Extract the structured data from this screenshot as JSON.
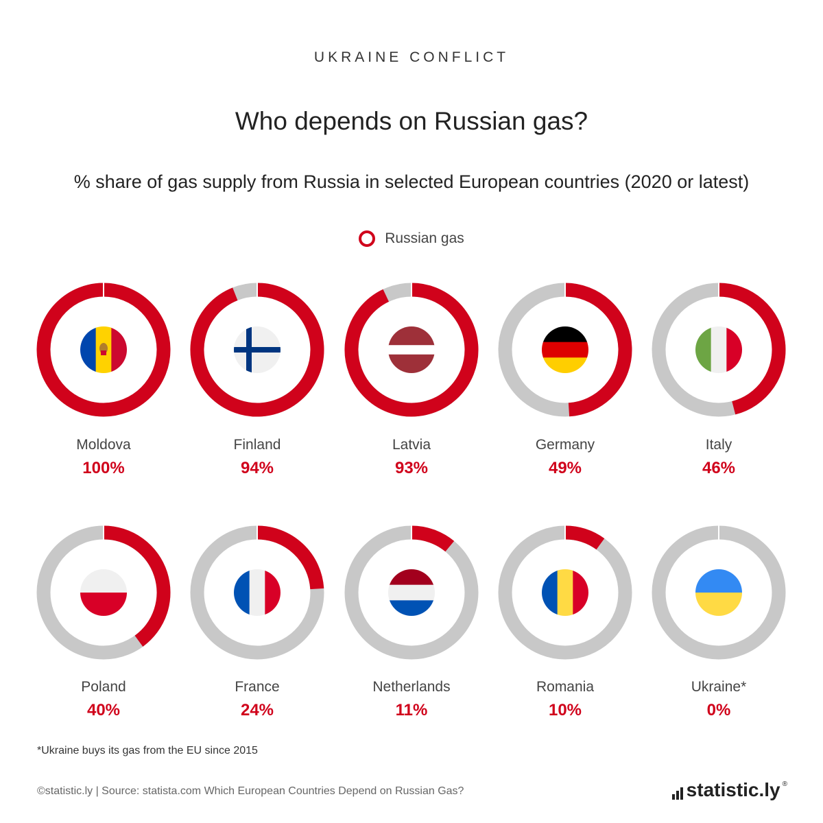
{
  "header": {
    "kicker": "UKRAINE CONFLICT",
    "title": "Who depends on Russian gas?",
    "subtitle": "% share of gas supply from Russia in selected European countries (2020 or latest)"
  },
  "legend": {
    "label": "Russian gas",
    "color": "#d0021b"
  },
  "colors": {
    "russian": "#d0021b",
    "rest": "#c8c8c8"
  },
  "chart_data": {
    "type": "pie",
    "variant": "donut-grid",
    "title": "Who depends on Russian gas?",
    "subtitle": "% share of gas supply from Russia in selected European countries (2020 or latest)",
    "series_name": "Russian gas",
    "categories": [
      "Moldova",
      "Finland",
      "Latvia",
      "Germany",
      "Italy",
      "Poland",
      "France",
      "Netherlands",
      "Romania",
      "Ukraine*"
    ],
    "values": [
      100,
      94,
      93,
      49,
      46,
      40,
      24,
      11,
      10,
      0
    ],
    "value_labels": [
      "100%",
      "94%",
      "93%",
      "49%",
      "46%",
      "40%",
      "24%",
      "11%",
      "10%",
      "0%"
    ],
    "flags": [
      {
        "icon": "moldova-flag-icon",
        "type": "v",
        "colors": [
          "#0046ae",
          "#ffd200",
          "#cc092f"
        ],
        "emblem": true
      },
      {
        "icon": "finland-flag-icon",
        "type": "nordic",
        "colors": [
          "#f0f0f0",
          "#003580"
        ]
      },
      {
        "icon": "latvia-flag-icon",
        "type": "h",
        "colors": [
          "#9e3039",
          "#ffffff",
          "#9e3039"
        ],
        "weights": [
          2,
          1,
          2
        ]
      },
      {
        "icon": "germany-flag-icon",
        "type": "h",
        "colors": [
          "#000000",
          "#dd0000",
          "#ffce00"
        ]
      },
      {
        "icon": "italy-flag-icon",
        "type": "v",
        "colors": [
          "#6da544",
          "#f0f0f0",
          "#d80027"
        ]
      },
      {
        "icon": "poland-flag-icon",
        "type": "h",
        "colors": [
          "#f0f0f0",
          "#d80027"
        ]
      },
      {
        "icon": "france-flag-icon",
        "type": "v",
        "colors": [
          "#0052b4",
          "#f0f0f0",
          "#d80027"
        ]
      },
      {
        "icon": "netherlands-flag-icon",
        "type": "h",
        "colors": [
          "#a2001d",
          "#f0f0f0",
          "#0052b4"
        ]
      },
      {
        "icon": "romania-flag-icon",
        "type": "v",
        "colors": [
          "#0052b4",
          "#ffda44",
          "#d80027"
        ]
      },
      {
        "icon": "ukraine-flag-icon",
        "type": "h",
        "colors": [
          "#338af3",
          "#ffda44"
        ]
      }
    ],
    "legend_position": "top-center",
    "grid": false
  },
  "footnote": "*Ukraine buys its gas from the EU since 2015",
  "source": "©statistic.ly | Source: statista.com Which European Countries Depend on Russian Gas?",
  "brand": {
    "name": "statistic.ly",
    "mark": "®"
  }
}
